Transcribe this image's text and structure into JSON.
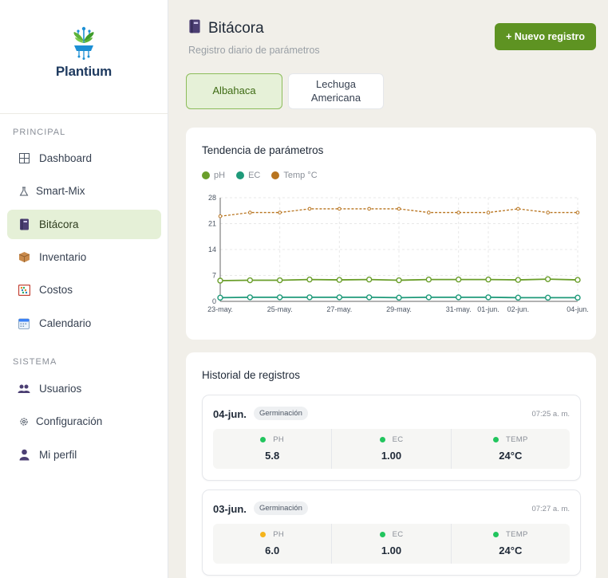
{
  "app": {
    "name": "Plantium"
  },
  "sidebar": {
    "sections": [
      {
        "label": "PRINCIPAL"
      },
      {
        "label": "SISTEMA"
      }
    ],
    "items": [
      {
        "label": "Dashboard",
        "icon": "grid-icon"
      },
      {
        "label": "Smart-Mix",
        "icon": "flask-icon"
      },
      {
        "label": "Bitácora",
        "icon": "notebook-icon",
        "active": true
      },
      {
        "label": "Inventario",
        "icon": "box-icon"
      },
      {
        "label": "Costos",
        "icon": "abacus-icon"
      },
      {
        "label": "Calendario",
        "icon": "calendar-icon"
      },
      {
        "label": "Usuarios",
        "icon": "users-icon"
      },
      {
        "label": "Configuración",
        "icon": "gear-icon"
      },
      {
        "label": "Mi perfil",
        "icon": "user-icon"
      }
    ]
  },
  "header": {
    "title": "Bitácora",
    "subtitle": "Registro diario de parámetros",
    "new_button": "+ Nuevo registro"
  },
  "tabs": [
    {
      "label": "Albahaca",
      "active": true
    },
    {
      "label": "Lechuga Americana",
      "active": false
    }
  ],
  "chart_card": {
    "title": "Tendencia de parámetros"
  },
  "chart_data": {
    "type": "line",
    "x": [
      "23-may.",
      "24-may.",
      "25-may.",
      "26-may.",
      "27-may.",
      "28-may.",
      "29-may.",
      "30-may.",
      "31-may.",
      "01-jun.",
      "02-jun.",
      "03-jun.",
      "04-jun."
    ],
    "x_tick_labels": [
      "23-may.",
      "25-may.",
      "27-may.",
      "29-may.",
      "31-may.",
      "01-jun.",
      "02-jun.",
      "04-jun."
    ],
    "x_tick_index": [
      0,
      2,
      4,
      6,
      8,
      9,
      10,
      12
    ],
    "series": [
      {
        "name": "pH",
        "color": "#6a9e2a",
        "values": [
          5.6,
          5.7,
          5.7,
          5.9,
          5.8,
          5.9,
          5.7,
          5.9,
          5.9,
          5.9,
          5.8,
          6.0,
          5.8
        ]
      },
      {
        "name": "EC",
        "color": "#1f9a7a",
        "values": [
          1.0,
          1.1,
          1.1,
          1.1,
          1.1,
          1.1,
          1.0,
          1.1,
          1.1,
          1.1,
          1.0,
          1.0,
          1.0
        ]
      },
      {
        "name": "Temp °C",
        "color": "#b8741f",
        "values": [
          23,
          24,
          24,
          25,
          25,
          25,
          25,
          24,
          24,
          24,
          25,
          24,
          24
        ]
      }
    ],
    "y_ticks": [
      0,
      7,
      14,
      21,
      28
    ],
    "ylim": [
      0,
      28
    ],
    "grid": true,
    "legend": "top-left"
  },
  "history": {
    "title": "Historial de registros",
    "entries": [
      {
        "date": "04-jun.",
        "stage": "Germinación",
        "time": "07:25 a. m.",
        "metrics": [
          {
            "label": "PH",
            "value": "5.8",
            "status": "#22c55e"
          },
          {
            "label": "EC",
            "value": "1.00",
            "status": "#22c55e"
          },
          {
            "label": "TEMP",
            "value": "24°C",
            "status": "#22c55e"
          }
        ]
      },
      {
        "date": "03-jun.",
        "stage": "Germinación",
        "time": "07:27 a. m.",
        "metrics": [
          {
            "label": "PH",
            "value": "6.0",
            "status": "#f5b41c"
          },
          {
            "label": "EC",
            "value": "1.00",
            "status": "#22c55e"
          },
          {
            "label": "TEMP",
            "value": "24°C",
            "status": "#22c55e"
          }
        ]
      }
    ]
  }
}
